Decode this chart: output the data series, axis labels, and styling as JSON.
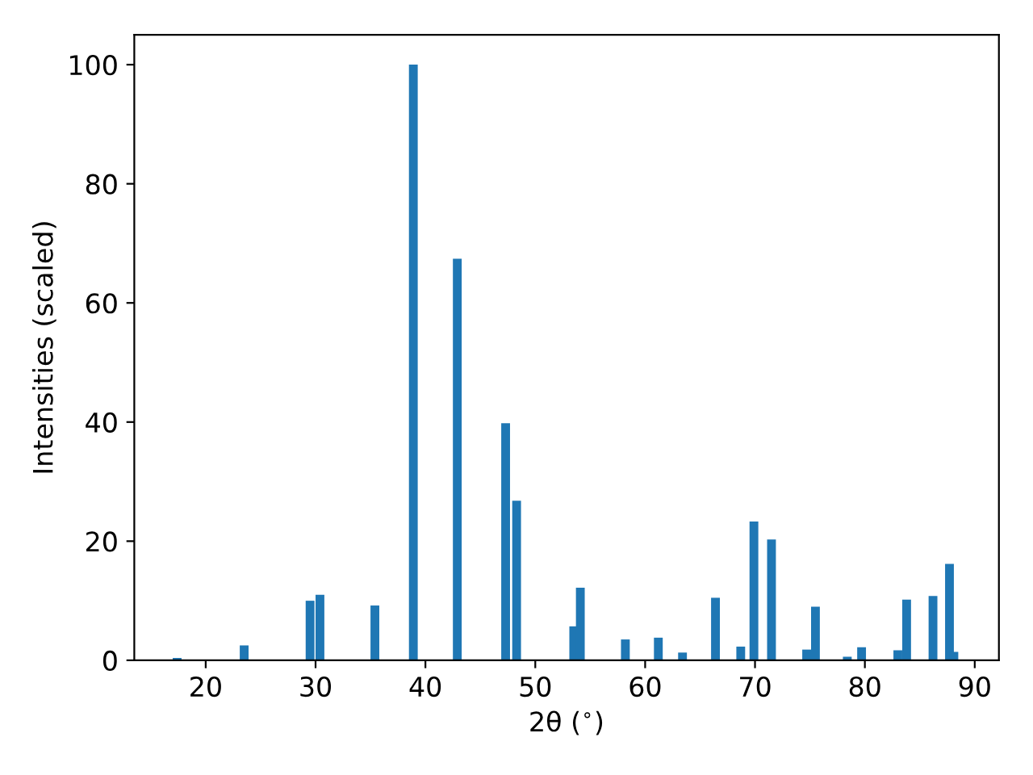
{
  "chart_data": {
    "type": "bar",
    "xlabel": "2θ ($^{∘}$)",
    "ylabel": "Intensities (scaled)",
    "x": [
      17.4,
      23.5,
      29.5,
      30.4,
      35.4,
      38.9,
      42.9,
      47.3,
      48.3,
      53.5,
      54.1,
      58.2,
      61.2,
      63.4,
      66.4,
      68.7,
      69.9,
      71.5,
      74.7,
      75.5,
      78.4,
      79.7,
      83.0,
      83.8,
      86.2,
      87.7,
      88.1
    ],
    "values": [
      0.4,
      2.5,
      10,
      11,
      9.2,
      100,
      67.4,
      39.8,
      26.8,
      5.7,
      12.2,
      3.5,
      3.8,
      1.3,
      10.5,
      2.3,
      23.3,
      20.3,
      1.8,
      9,
      0.6,
      2.2,
      1.7,
      10.2,
      10.8,
      16.2,
      1.4
    ],
    "color": "#1f77b4",
    "xlim": [
      13.5,
      92.2
    ],
    "ylim": [
      0,
      105
    ],
    "xticks": [
      20,
      30,
      40,
      50,
      60,
      70,
      80,
      90
    ],
    "yticks": [
      0,
      20,
      40,
      60,
      80,
      100
    ]
  }
}
